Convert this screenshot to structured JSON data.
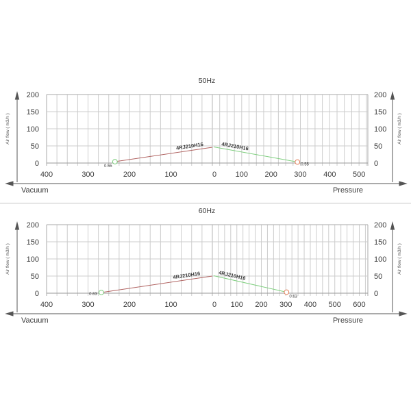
{
  "colors": {
    "grid": "#cccccc",
    "border": "#a8a8a8",
    "center_line": "#b5b5b5",
    "bottom_axis": "#9a9a9a",
    "axis_arrow": "#555555",
    "text": "#3a3a3a",
    "vacuum_curve": "#b06361",
    "pressure_curve": "#7fcf7f",
    "start_marker": "#7fcf7f",
    "end_marker": "#e2815c"
  },
  "chart_data": [
    {
      "type": "line",
      "title": "50Hz",
      "y_axis_label": "Air flow ( m3/h )",
      "x_axis_left_label": "Vacuum",
      "x_axis_right_label": "Pressure",
      "ylim": [
        0,
        200
      ],
      "y_ticks": [
        0,
        50,
        100,
        150,
        200
      ],
      "grid_step": 25,
      "center_tick_label": "0",
      "vacuum_axis": {
        "tick_labels": [
          400,
          300,
          200,
          100
        ],
        "edge": 400
      },
      "pressure_axis": {
        "tick_labels": [
          100,
          200,
          300,
          400,
          500
        ],
        "edge": 530
      },
      "series": [
        {
          "name": "4RJ210H16",
          "axis": "vacuum",
          "color": "#b06361",
          "points": [
            [
              235,
              4
            ],
            [
              0,
              46
            ]
          ],
          "marker": {
            "pos": "start",
            "color": "#7fcf7f"
          },
          "point_label": "0.55"
        },
        {
          "name": "4RJ210H16",
          "axis": "pressure",
          "color": "#7fcf7f",
          "points": [
            [
              5,
              47
            ],
            [
              290,
              3
            ]
          ],
          "marker": {
            "pos": "end",
            "color": "#e2815c"
          },
          "point_label": "0.55"
        }
      ]
    },
    {
      "type": "line",
      "title": "60Hz",
      "y_axis_label": "Air flow ( m3/h )",
      "x_axis_left_label": "Vacuum",
      "x_axis_right_label": "Pressure",
      "ylim": [
        0,
        200
      ],
      "y_ticks": [
        0,
        50,
        100,
        150,
        200
      ],
      "grid_step": 25,
      "center_tick_label": "0",
      "vacuum_axis": {
        "tick_labels": [
          400,
          300,
          200,
          100
        ],
        "edge": 400
      },
      "pressure_axis": {
        "tick_labels": [
          100,
          200,
          300,
          400,
          500,
          600
        ],
        "edge": 635
      },
      "series": [
        {
          "name": "4RJ210H16",
          "axis": "vacuum",
          "color": "#b06361",
          "points": [
            [
              268,
              2
            ],
            [
              0,
              50
            ]
          ],
          "marker": {
            "pos": "start",
            "color": "#7fcf7f"
          },
          "point_label": "0.63"
        },
        {
          "name": "4RJ210H16",
          "axis": "pressure",
          "color": "#7fcf7f",
          "points": [
            [
              5,
              51
            ],
            [
              303,
              3
            ]
          ],
          "marker": {
            "pos": "end",
            "color": "#e2815c"
          },
          "point_label": "0.63"
        }
      ]
    }
  ]
}
